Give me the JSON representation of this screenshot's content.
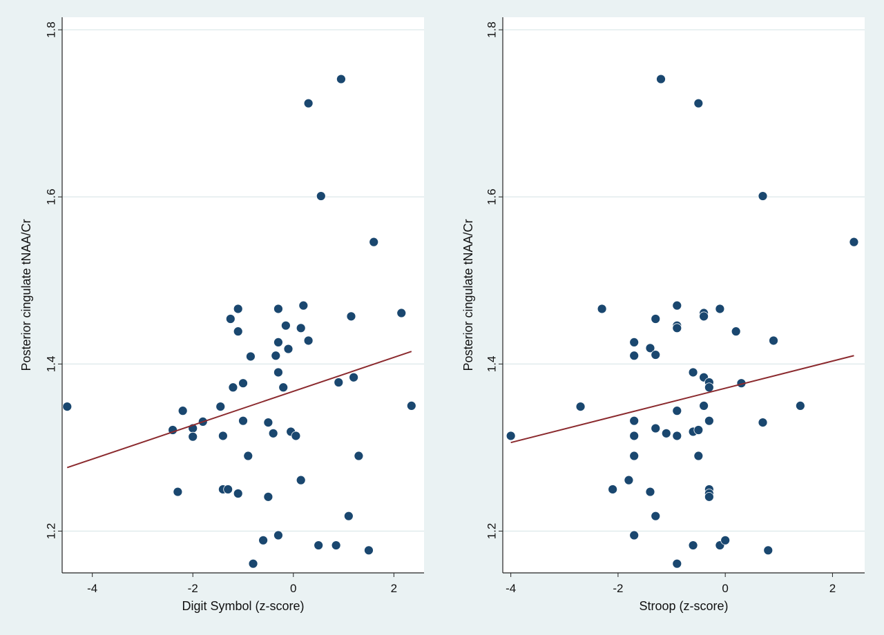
{
  "chart_data": [
    {
      "type": "scatter",
      "xlabel": "Digit Symbol (z-score)",
      "ylabel": "Posterior cingulate tNAA/Cr",
      "xlim": [
        -4.6,
        2.6
      ],
      "ylim": [
        1.15,
        1.815
      ],
      "xticks": [
        "-4",
        "-2",
        "0",
        "2"
      ],
      "yticks": [
        "1.2",
        "1.4",
        "1.6",
        "1.8"
      ],
      "grid": "horizontal",
      "colors": {
        "marker": "#1a476f",
        "fit_line": "#8b2a2e",
        "panel_bg": "#ffffff",
        "page_bg": "#eaf2f3",
        "grid": "#dce8ea"
      },
      "points": [
        [
          -4.5,
          1.349
        ],
        [
          -2.4,
          1.321
        ],
        [
          -2.3,
          1.247
        ],
        [
          -2.2,
          1.344
        ],
        [
          -2.0,
          1.323
        ],
        [
          -2.0,
          1.313
        ],
        [
          -1.8,
          1.331
        ],
        [
          -1.45,
          1.349
        ],
        [
          -1.4,
          1.314
        ],
        [
          -1.4,
          1.25
        ],
        [
          -1.3,
          1.25
        ],
        [
          -1.25,
          1.454
        ],
        [
          -1.2,
          1.372
        ],
        [
          -1.1,
          1.466
        ],
        [
          -1.1,
          1.439
        ],
        [
          -1.1,
          1.245
        ],
        [
          -1.0,
          1.377
        ],
        [
          -1.0,
          1.332
        ],
        [
          -0.9,
          1.29
        ],
        [
          -0.85,
          1.409
        ],
        [
          -0.8,
          1.161
        ],
        [
          -0.6,
          1.189
        ],
        [
          -0.5,
          1.33
        ],
        [
          -0.5,
          1.241
        ],
        [
          -0.4,
          1.317
        ],
        [
          -0.35,
          1.41
        ],
        [
          -0.3,
          1.466
        ],
        [
          -0.3,
          1.426
        ],
        [
          -0.3,
          1.39
        ],
        [
          -0.3,
          1.195
        ],
        [
          -0.2,
          1.372
        ],
        [
          -0.15,
          1.446
        ],
        [
          -0.1,
          1.418
        ],
        [
          -0.05,
          1.319
        ],
        [
          0.05,
          1.314
        ],
        [
          0.15,
          1.443
        ],
        [
          0.15,
          1.261
        ],
        [
          0.2,
          1.47
        ],
        [
          0.3,
          1.428
        ],
        [
          0.3,
          1.712
        ],
        [
          0.5,
          1.183
        ],
        [
          0.55,
          1.601
        ],
        [
          0.85,
          1.183
        ],
        [
          0.9,
          1.378
        ],
        [
          0.95,
          1.741
        ],
        [
          1.1,
          1.218
        ],
        [
          1.15,
          1.457
        ],
        [
          1.2,
          1.384
        ],
        [
          1.3,
          1.29
        ],
        [
          1.5,
          1.177
        ],
        [
          1.6,
          1.546
        ],
        [
          2.15,
          1.461
        ],
        [
          2.35,
          1.35
        ]
      ],
      "fit_line": {
        "x": [
          -4.5,
          2.35
        ],
        "y": [
          1.276,
          1.415
        ]
      }
    },
    {
      "type": "scatter",
      "xlabel": "Stroop (z-score)",
      "ylabel": "Posterior cingulate tNAA/Cr",
      "xlim": [
        -4.15,
        2.6
      ],
      "ylim": [
        1.15,
        1.815
      ],
      "xticks": [
        "-4",
        "-2",
        "0",
        "2"
      ],
      "yticks": [
        "1.2",
        "1.4",
        "1.6",
        "1.8"
      ],
      "grid": "horizontal",
      "colors": {
        "marker": "#1a476f",
        "fit_line": "#8b2a2e",
        "panel_bg": "#ffffff",
        "page_bg": "#eaf2f3",
        "grid": "#dce8ea"
      },
      "points": [
        [
          -4.0,
          1.314
        ],
        [
          -2.7,
          1.349
        ],
        [
          -2.3,
          1.466
        ],
        [
          -2.1,
          1.25
        ],
        [
          -1.8,
          1.261
        ],
        [
          -1.7,
          1.426
        ],
        [
          -1.7,
          1.41
        ],
        [
          -1.7,
          1.332
        ],
        [
          -1.7,
          1.314
        ],
        [
          -1.7,
          1.29
        ],
        [
          -1.7,
          1.195
        ],
        [
          -1.4,
          1.419
        ],
        [
          -1.4,
          1.247
        ],
        [
          -1.3,
          1.454
        ],
        [
          -1.3,
          1.411
        ],
        [
          -1.3,
          1.323
        ],
        [
          -1.3,
          1.218
        ],
        [
          -1.2,
          1.741
        ],
        [
          -1.1,
          1.317
        ],
        [
          -0.9,
          1.47
        ],
        [
          -0.9,
          1.446
        ],
        [
          -0.9,
          1.443
        ],
        [
          -0.9,
          1.344
        ],
        [
          -0.9,
          1.314
        ],
        [
          -0.9,
          1.161
        ],
        [
          -0.6,
          1.39
        ],
        [
          -0.6,
          1.319
        ],
        [
          -0.6,
          1.183
        ],
        [
          -0.5,
          1.712
        ],
        [
          -0.5,
          1.321
        ],
        [
          -0.5,
          1.29
        ],
        [
          -0.4,
          1.461
        ],
        [
          -0.4,
          1.457
        ],
        [
          -0.4,
          1.384
        ],
        [
          -0.4,
          1.35
        ],
        [
          -0.3,
          1.378
        ],
        [
          -0.3,
          1.372
        ],
        [
          -0.3,
          1.332
        ],
        [
          -0.3,
          1.25
        ],
        [
          -0.3,
          1.245
        ],
        [
          -0.3,
          1.241
        ],
        [
          -0.1,
          1.466
        ],
        [
          -0.1,
          1.183
        ],
        [
          0.0,
          1.189
        ],
        [
          0.2,
          1.439
        ],
        [
          0.3,
          1.377
        ],
        [
          0.7,
          1.601
        ],
        [
          0.7,
          1.33
        ],
        [
          0.8,
          1.177
        ],
        [
          0.9,
          1.428
        ],
        [
          1.4,
          1.35
        ],
        [
          2.4,
          1.546
        ]
      ],
      "fit_line": {
        "x": [
          -4.0,
          2.4
        ],
        "y": [
          1.306,
          1.41
        ]
      }
    }
  ]
}
